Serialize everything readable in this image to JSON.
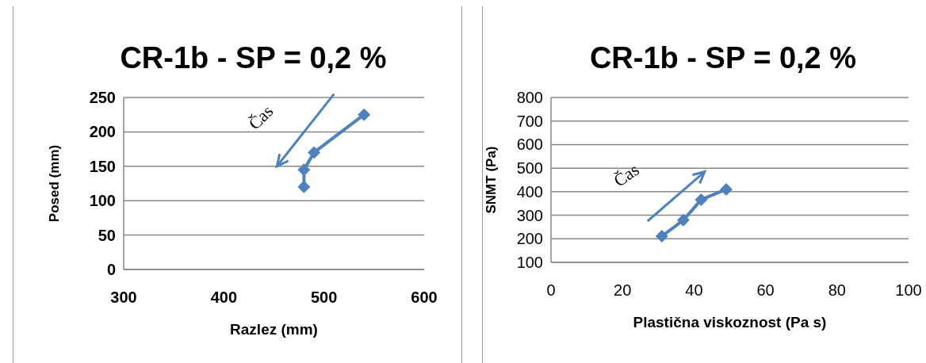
{
  "chart_data": [
    {
      "type": "line",
      "title": "CR-1b - SP = 0,2 %",
      "xlabel": "Razlez (mm)",
      "ylabel": "Posed (mm)",
      "annotations": [
        "Čas"
      ],
      "series": [
        {
          "color": "#4f81bd",
          "x": [
            540,
            490,
            480,
            480
          ],
          "values": [
            225,
            170,
            145,
            120
          ]
        }
      ],
      "xlim": [
        300,
        600
      ],
      "xticks": [
        300,
        400,
        500,
        600
      ],
      "ylim": [
        0,
        250
      ],
      "yticks": [
        0,
        50,
        100,
        150,
        200,
        250
      ],
      "grid": "y",
      "marker": "diamond",
      "line_style": "solid"
    },
    {
      "type": "line",
      "title": "CR-1b - SP = 0,2 %",
      "xlabel": "Plastična viskoznost (Pa s)",
      "ylabel": "SNMT (Pa)",
      "annotations": [
        "Čas"
      ],
      "series": [
        {
          "color": "#4f81bd",
          "x": [
            31,
            37,
            42,
            49
          ],
          "values": [
            211,
            279,
            366,
            410
          ]
        }
      ],
      "xlim": [
        0,
        100
      ],
      "xticks": [
        0,
        20,
        40,
        60,
        80,
        100
      ],
      "ylim": [
        100,
        800
      ],
      "yticks": [
        100,
        200,
        300,
        400,
        500,
        600,
        700,
        800
      ],
      "grid": "y",
      "marker": "diamond",
      "line_style": "solid"
    }
  ]
}
